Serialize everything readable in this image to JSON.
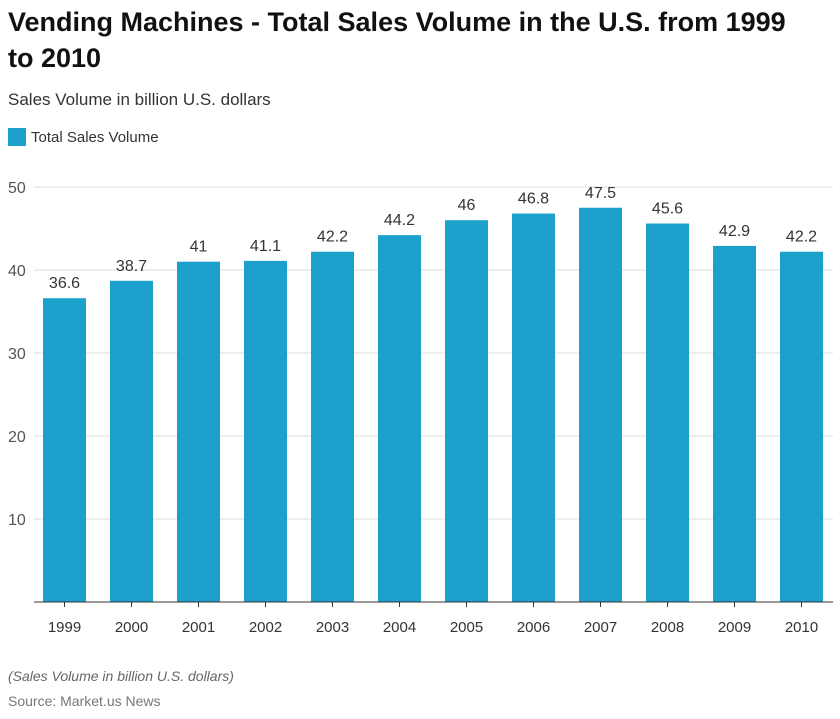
{
  "title": "Vending Machines - Total Sales Volume in the U.S. from 1999 to 2010",
  "subtitle": "Sales Volume in billion U.S. dollars",
  "note": "(Sales Volume in billion U.S. dollars)",
  "source": "Source: Market.us News",
  "chart_data": {
    "type": "bar",
    "categories": [
      "1999",
      "2000",
      "2001",
      "2002",
      "2003",
      "2004",
      "2005",
      "2006",
      "2007",
      "2008",
      "2009",
      "2010"
    ],
    "series": [
      {
        "name": "Total Sales Volume",
        "color": "#1ba1cc",
        "values": [
          36.6,
          38.7,
          41,
          41.1,
          42.2,
          44.2,
          46,
          46.8,
          47.5,
          45.6,
          42.9,
          42.2
        ]
      }
    ],
    "ylim": [
      0,
      50
    ],
    "yticks": [
      10,
      20,
      30,
      40,
      50
    ],
    "grid": true,
    "legend": "top-left",
    "data_labels": true
  }
}
